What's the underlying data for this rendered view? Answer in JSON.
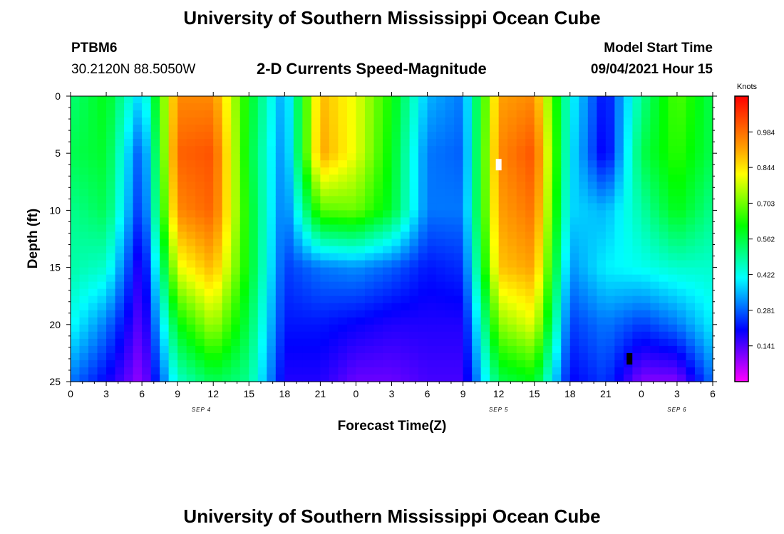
{
  "header": {
    "title": "University of Southern Mississippi Ocean Cube",
    "station": "PTBM6",
    "coords": "30.2120N  88.5050W",
    "subtitle": "2-D Currents Speed-Magnitude",
    "model_label": "Model Start Time",
    "model_time": "09/04/2021 Hour 15"
  },
  "footer": {
    "title": "University of Southern Mississippi Ocean Cube"
  },
  "chart_data": {
    "type": "heatmap",
    "title": "2-D Currents Speed-Magnitude",
    "xlabel": "Forecast Time(Z)",
    "ylabel": "Depth (ft)",
    "x_ticks": [
      "0",
      "3",
      "6",
      "9",
      "12",
      "15",
      "18",
      "21",
      "0",
      "3",
      "6",
      "9",
      "12",
      "15",
      "18",
      "21",
      "0",
      "3",
      "6"
    ],
    "date_labels": [
      {
        "label": "SEP 4",
        "at_hour": 11
      },
      {
        "label": "SEP 5",
        "at_hour": 36
      },
      {
        "label": "SEP 6",
        "at_hour": 51
      }
    ],
    "y_ticks": [
      0,
      5,
      10,
      15,
      20,
      25
    ],
    "ylim": [
      0,
      25
    ],
    "xlim_hours": [
      0,
      54
    ],
    "colorbar": {
      "unit": "Knots",
      "ticks": [
        "0.984",
        "0.844",
        "0.703",
        "0.562",
        "0.422",
        "0.281",
        "0.141"
      ],
      "range": [
        0,
        1.125
      ],
      "colors": [
        "#ff00ff",
        "#8000ff",
        "#0000ff",
        "#0080ff",
        "#00ffff",
        "#00ff80",
        "#00ff00",
        "#80ff00",
        "#ffff00",
        "#ffa000",
        "#ff5000",
        "#ff0000"
      ]
    },
    "time_hours": [
      0,
      3,
      6,
      9,
      12,
      15,
      18,
      21,
      24,
      27,
      30,
      33,
      36,
      39,
      42,
      45,
      48,
      51,
      54
    ],
    "depths_ft": [
      0,
      5,
      10,
      15,
      20,
      25
    ],
    "speed_knots": [
      [
        0.52,
        0.55,
        0.5,
        0.48,
        0.42,
        0.3
      ],
      [
        0.6,
        0.58,
        0.55,
        0.45,
        0.3,
        0.2
      ],
      [
        0.36,
        0.25,
        0.22,
        0.15,
        0.12,
        0.08
      ],
      [
        0.95,
        1.0,
        0.95,
        0.8,
        0.6,
        0.45
      ],
      [
        0.95,
        1.02,
        1.0,
        0.9,
        0.75,
        0.55
      ],
      [
        0.6,
        0.58,
        0.6,
        0.6,
        0.55,
        0.5
      ],
      [
        0.32,
        0.3,
        0.28,
        0.25,
        0.22,
        0.18
      ],
      [
        0.9,
        0.92,
        0.68,
        0.3,
        0.22,
        0.18
      ],
      [
        0.8,
        0.8,
        0.7,
        0.32,
        0.2,
        0.12
      ],
      [
        0.62,
        0.6,
        0.58,
        0.28,
        0.18,
        0.12
      ],
      [
        0.35,
        0.3,
        0.3,
        0.22,
        0.18,
        0.15
      ],
      [
        0.3,
        0.28,
        0.3,
        0.24,
        0.18,
        0.15
      ],
      [
        0.92,
        0.95,
        0.92,
        0.88,
        0.72,
        0.55
      ],
      [
        0.95,
        1.02,
        0.98,
        0.92,
        0.8,
        0.6
      ],
      [
        0.42,
        0.4,
        0.38,
        0.32,
        0.25,
        0.2
      ],
      [
        0.2,
        0.18,
        0.35,
        0.4,
        0.3,
        0.25
      ],
      [
        0.5,
        0.55,
        0.48,
        0.42,
        0.25,
        0.1
      ],
      [
        0.68,
        0.65,
        0.6,
        0.45,
        0.3,
        0.1
      ],
      [
        0.55,
        0.55,
        0.5,
        0.45,
        0.4,
        0.3
      ]
    ],
    "markers": [
      {
        "time_hour": 36,
        "depth_ft": 6,
        "color": "#ffffff"
      },
      {
        "time_hour": 47,
        "depth_ft": 23,
        "color": "#000000"
      }
    ]
  }
}
